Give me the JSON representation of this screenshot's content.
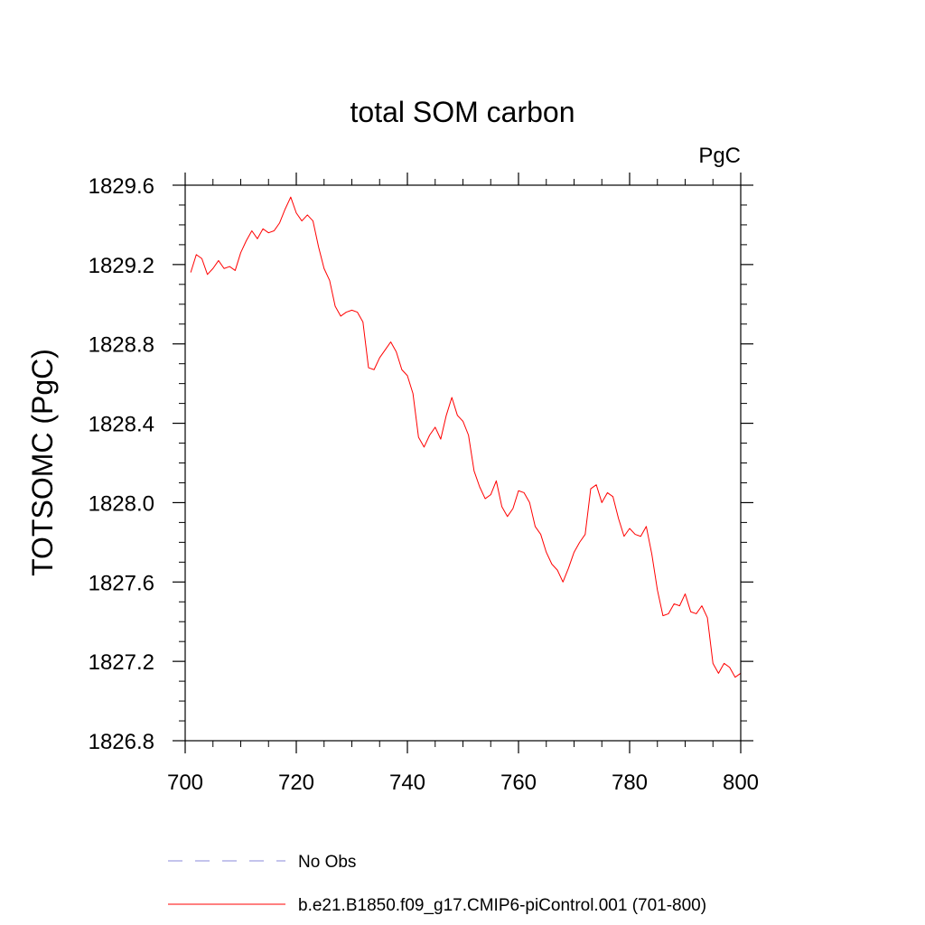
{
  "chart_data": {
    "type": "line",
    "title": "total SOM carbon",
    "units_label": "PgC",
    "ylabel": "TOTSOMC  (PgC)",
    "xlabel": "",
    "xlim": [
      700,
      800
    ],
    "ylim": [
      1826.8,
      1829.6
    ],
    "x_ticks": [
      700,
      720,
      740,
      760,
      780,
      800
    ],
    "x_tick_labels": [
      "700",
      "720",
      "740",
      "760",
      "780",
      "800"
    ],
    "y_ticks": [
      1826.8,
      1827.2,
      1827.6,
      1828.0,
      1828.4,
      1828.8,
      1829.2,
      1829.6
    ],
    "y_tick_labels": [
      "1826.8",
      "1827.2",
      "1827.6",
      "1828.0",
      "1828.4",
      "1828.8",
      "1829.2",
      "1829.6"
    ],
    "grid": false,
    "legend_position": "bottom",
    "series": [
      {
        "name": "No Obs",
        "color": "#8a8ad8",
        "style": "dashed",
        "x": [],
        "values": []
      },
      {
        "name": "b.e21.B1850.f09_g17.CMIP6-piControl.001 (701-800)",
        "color": "#ff0000",
        "style": "solid",
        "x": [
          701,
          702,
          703,
          704,
          705,
          706,
          707,
          708,
          709,
          710,
          711,
          712,
          713,
          714,
          715,
          716,
          717,
          718,
          719,
          720,
          721,
          722,
          723,
          724,
          725,
          726,
          727,
          728,
          729,
          730,
          731,
          732,
          733,
          734,
          735,
          736,
          737,
          738,
          739,
          740,
          741,
          742,
          743,
          744,
          745,
          746,
          747,
          748,
          749,
          750,
          751,
          752,
          753,
          754,
          755,
          756,
          757,
          758,
          759,
          760,
          761,
          762,
          763,
          764,
          765,
          766,
          767,
          768,
          769,
          770,
          771,
          772,
          773,
          774,
          775,
          776,
          777,
          778,
          779,
          780,
          781,
          782,
          783,
          784,
          785,
          786,
          787,
          788,
          789,
          790,
          791,
          792,
          793,
          794,
          795,
          796,
          797,
          798,
          799,
          800
        ],
        "values": [
          1829.16,
          1829.25,
          1829.23,
          1829.15,
          1829.18,
          1829.22,
          1829.18,
          1829.19,
          1829.17,
          1829.26,
          1829.32,
          1829.37,
          1829.33,
          1829.38,
          1829.36,
          1829.37,
          1829.41,
          1829.48,
          1829.54,
          1829.46,
          1829.42,
          1829.45,
          1829.42,
          1829.29,
          1829.18,
          1829.12,
          1828.99,
          1828.94,
          1828.96,
          1828.97,
          1828.96,
          1828.91,
          1828.68,
          1828.67,
          1828.73,
          1828.77,
          1828.81,
          1828.76,
          1828.67,
          1828.64,
          1828.55,
          1828.33,
          1828.28,
          1828.34,
          1828.38,
          1828.32,
          1828.44,
          1828.53,
          1828.44,
          1828.41,
          1828.34,
          1828.16,
          1828.08,
          1828.02,
          1828.04,
          1828.11,
          1827.98,
          1827.93,
          1827.97,
          1828.06,
          1828.05,
          1828.0,
          1827.88,
          1827.84,
          1827.75,
          1827.69,
          1827.66,
          1827.6,
          1827.67,
          1827.75,
          1827.8,
          1827.84,
          1828.07,
          1828.09,
          1828.0,
          1828.05,
          1828.03,
          1827.92,
          1827.83,
          1827.87,
          1827.84,
          1827.83,
          1827.88,
          1827.74,
          1827.56,
          1827.43,
          1827.44,
          1827.49,
          1827.48,
          1827.54,
          1827.45,
          1827.44,
          1827.48,
          1827.42,
          1827.19,
          1827.14,
          1827.19,
          1827.17,
          1827.12,
          1827.14
        ]
      }
    ]
  }
}
